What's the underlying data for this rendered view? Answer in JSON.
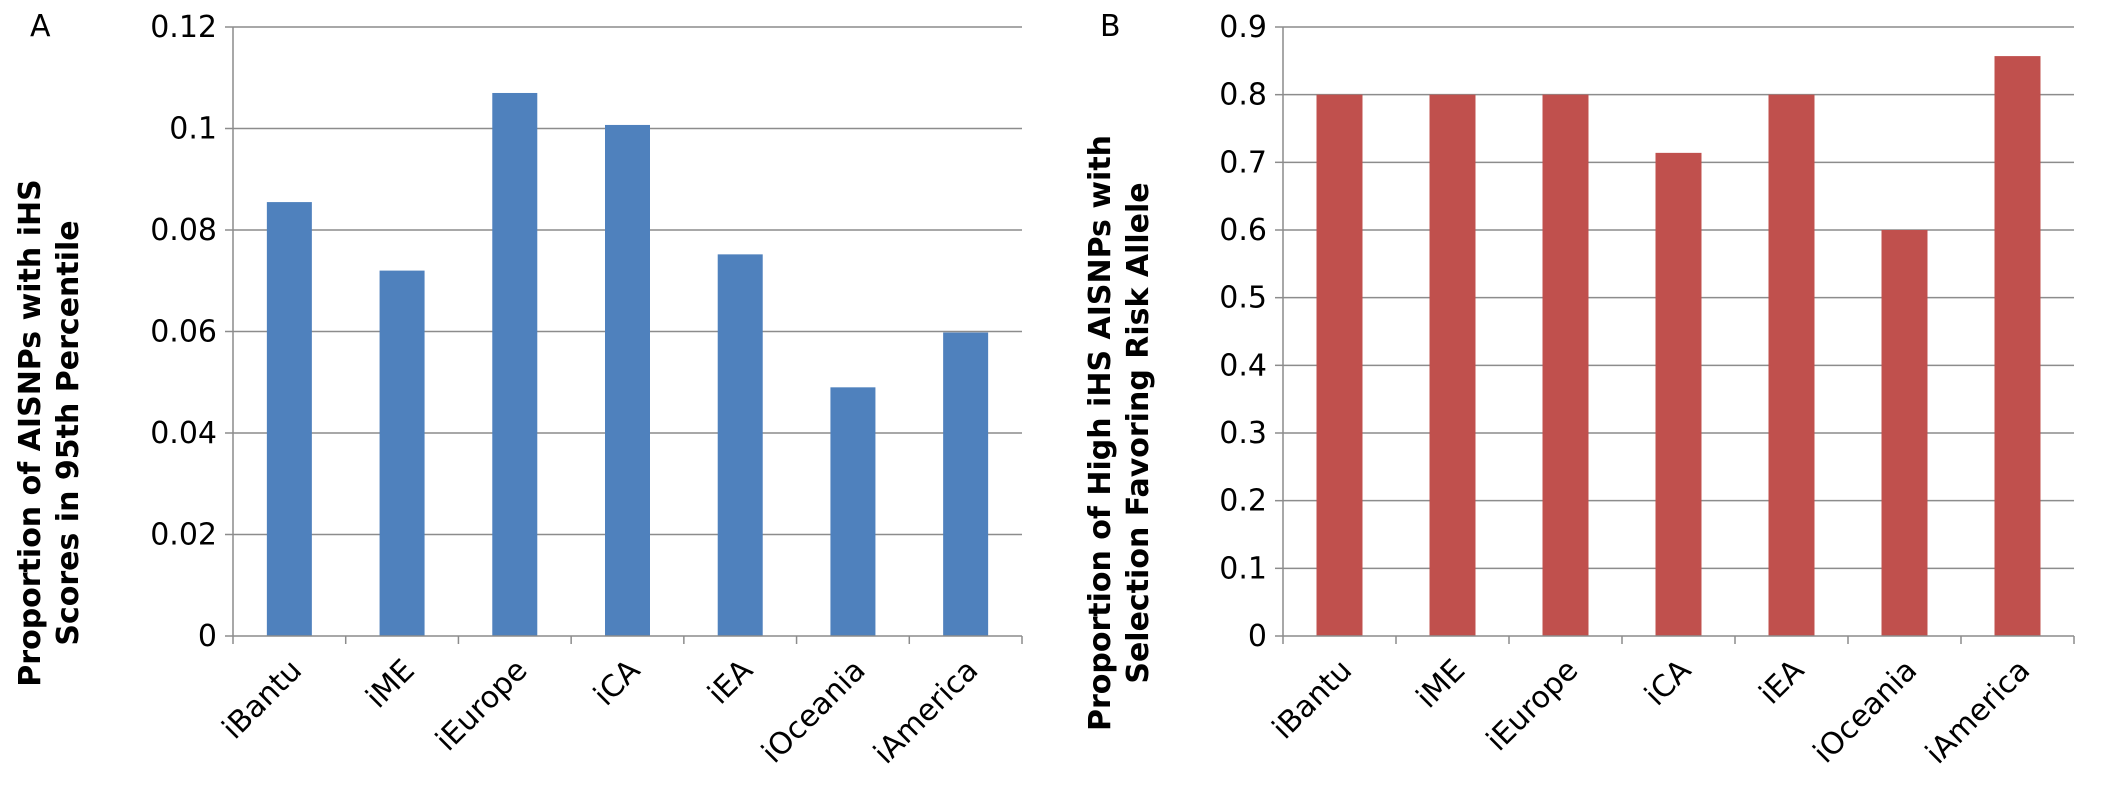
{
  "chart_data": [
    {
      "type": "bar",
      "panel_label": "A",
      "categories": [
        "iBantu",
        "iME",
        "iEurope",
        "iCA",
        "iEA",
        "iOceania",
        "iAmerica"
      ],
      "values": [
        0.0855,
        0.072,
        0.107,
        0.1007,
        0.0752,
        0.049,
        0.0598
      ],
      "ylabel_lines": [
        "Proportion of AISNPs with iHS",
        "Scores in 95th Percentile"
      ],
      "xlabel": "",
      "ylim": [
        0,
        0.12
      ],
      "yticks": [
        "0",
        "0.02",
        "0.04",
        "0.06",
        "0.08",
        "0.1",
        "0.12"
      ],
      "grid": true,
      "legend": "none",
      "color": "#4f81bd"
    },
    {
      "type": "bar",
      "panel_label": "B",
      "categories": [
        "iBantu",
        "iME",
        "iEurope",
        "iCA",
        "iEA",
        "iOceania",
        "iAmerica"
      ],
      "values": [
        0.8,
        0.8,
        0.8,
        0.714,
        0.8,
        0.6,
        0.857
      ],
      "ylabel_lines": [
        "Proportion of High iHS AISNPs with",
        "Selection Favoring Risk Allele"
      ],
      "xlabel": "",
      "ylim": [
        0,
        0.9
      ],
      "yticks": [
        "0",
        "0.1",
        "0.2",
        "0.3",
        "0.4",
        "0.5",
        "0.6",
        "0.7",
        "0.8",
        "0.9"
      ],
      "grid": true,
      "legend": "none",
      "color": "#c0504d"
    }
  ]
}
